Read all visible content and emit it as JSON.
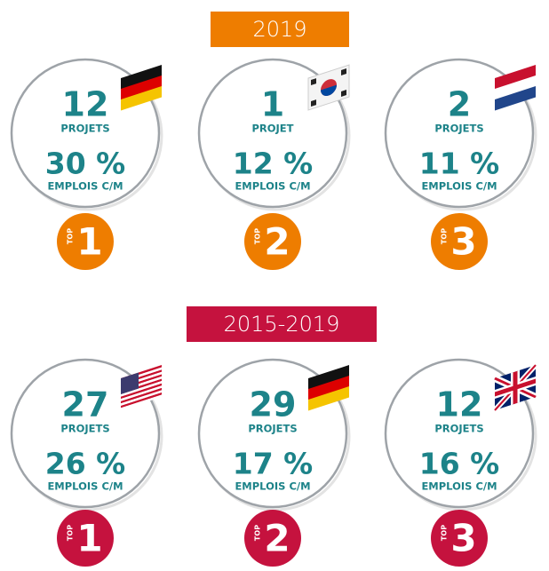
{
  "sections": [
    {
      "title": "2019",
      "color": "#ee7d00",
      "items": [
        {
          "count": 12,
          "count_label": "PROJETS",
          "share": "30 %",
          "share_label": "EMPLOIS C/M",
          "top_label": "TOP",
          "rank": 1
        },
        {
          "count": 1,
          "count_label": "PROJET",
          "share": "12 %",
          "share_label": "EMPLOIS C/M",
          "top_label": "TOP",
          "rank": 2
        },
        {
          "count": 2,
          "count_label": "PROJETS",
          "share": "11 %",
          "share_label": "EMPLOIS C/M",
          "top_label": "TOP",
          "rank": 3
        }
      ]
    },
    {
      "title": "2015-2019",
      "color": "#c5123e",
      "items": [
        {
          "count": 27,
          "count_label": "PROJETS",
          "share": "26 %",
          "share_label": "EMPLOIS C/M",
          "top_label": "TOP",
          "rank": 1
        },
        {
          "count": 29,
          "count_label": "PROJETS",
          "share": "17 %",
          "share_label": "EMPLOIS C/M",
          "top_label": "TOP",
          "rank": 2
        },
        {
          "count": 12,
          "count_label": "PROJETS",
          "share": "16 %",
          "share_label": "EMPLOIS C/M",
          "top_label": "TOP",
          "rank": 3
        }
      ]
    }
  ]
}
